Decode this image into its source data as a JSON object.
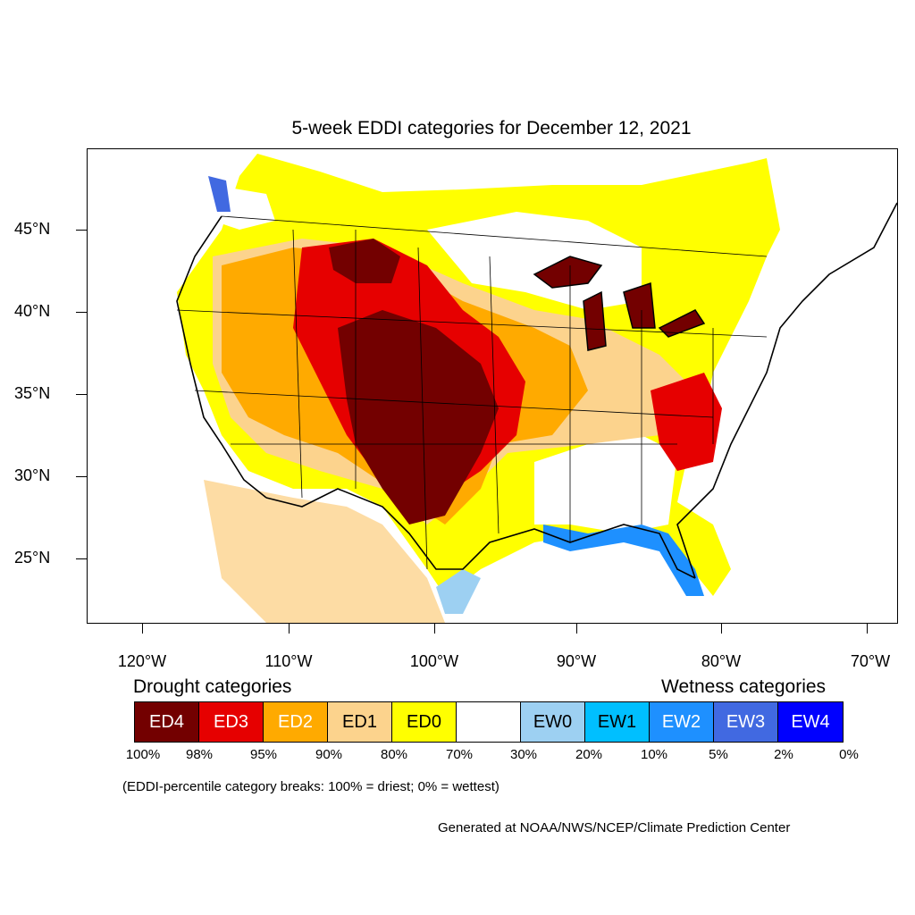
{
  "title": "5-week EDDI categories for December 12, 2021",
  "y_axis": {
    "ticks": [
      "45°N",
      "40°N",
      "35°N",
      "30°N",
      "25°N"
    ]
  },
  "x_axis": {
    "ticks": [
      "120°W",
      "110°W",
      "100°W",
      "90°W",
      "80°W",
      "70°W"
    ]
  },
  "legend": {
    "drought_heading": "Drought categories",
    "wetness_heading": "Wetness categories",
    "categories": [
      {
        "label": "ED4",
        "color": "#730000",
        "text_color": "#ffffff"
      },
      {
        "label": "ED3",
        "color": "#e60000",
        "text_color": "#ffffff"
      },
      {
        "label": "ED2",
        "color": "#ffaa00",
        "text_color": "#ffffff"
      },
      {
        "label": "ED1",
        "color": "#fcd38d",
        "text_color": "#000000"
      },
      {
        "label": "ED0",
        "color": "#ffff00",
        "text_color": "#000000"
      },
      {
        "label": "",
        "color": "#ffffff",
        "text_color": "#000000"
      },
      {
        "label": "EW0",
        "color": "#9dd0f2",
        "text_color": "#000000"
      },
      {
        "label": "EW1",
        "color": "#00bfff",
        "text_color": "#000000"
      },
      {
        "label": "EW2",
        "color": "#1e90ff",
        "text_color": "#ffffff"
      },
      {
        "label": "EW3",
        "color": "#4169e1",
        "text_color": "#ffffff"
      },
      {
        "label": "EW4",
        "color": "#0000ff",
        "text_color": "#ffffff"
      }
    ],
    "percentiles": [
      "100%",
      "98%",
      "95%",
      "90%",
      "80%",
      "70%",
      "30%",
      "20%",
      "10%",
      "5%",
      "2%",
      "0%"
    ]
  },
  "note": "(EDDI-percentile category breaks: 100% = driest; 0% = wettest)",
  "credit": "Generated at NOAA/NWS/NCEP/Climate Prediction Center"
}
